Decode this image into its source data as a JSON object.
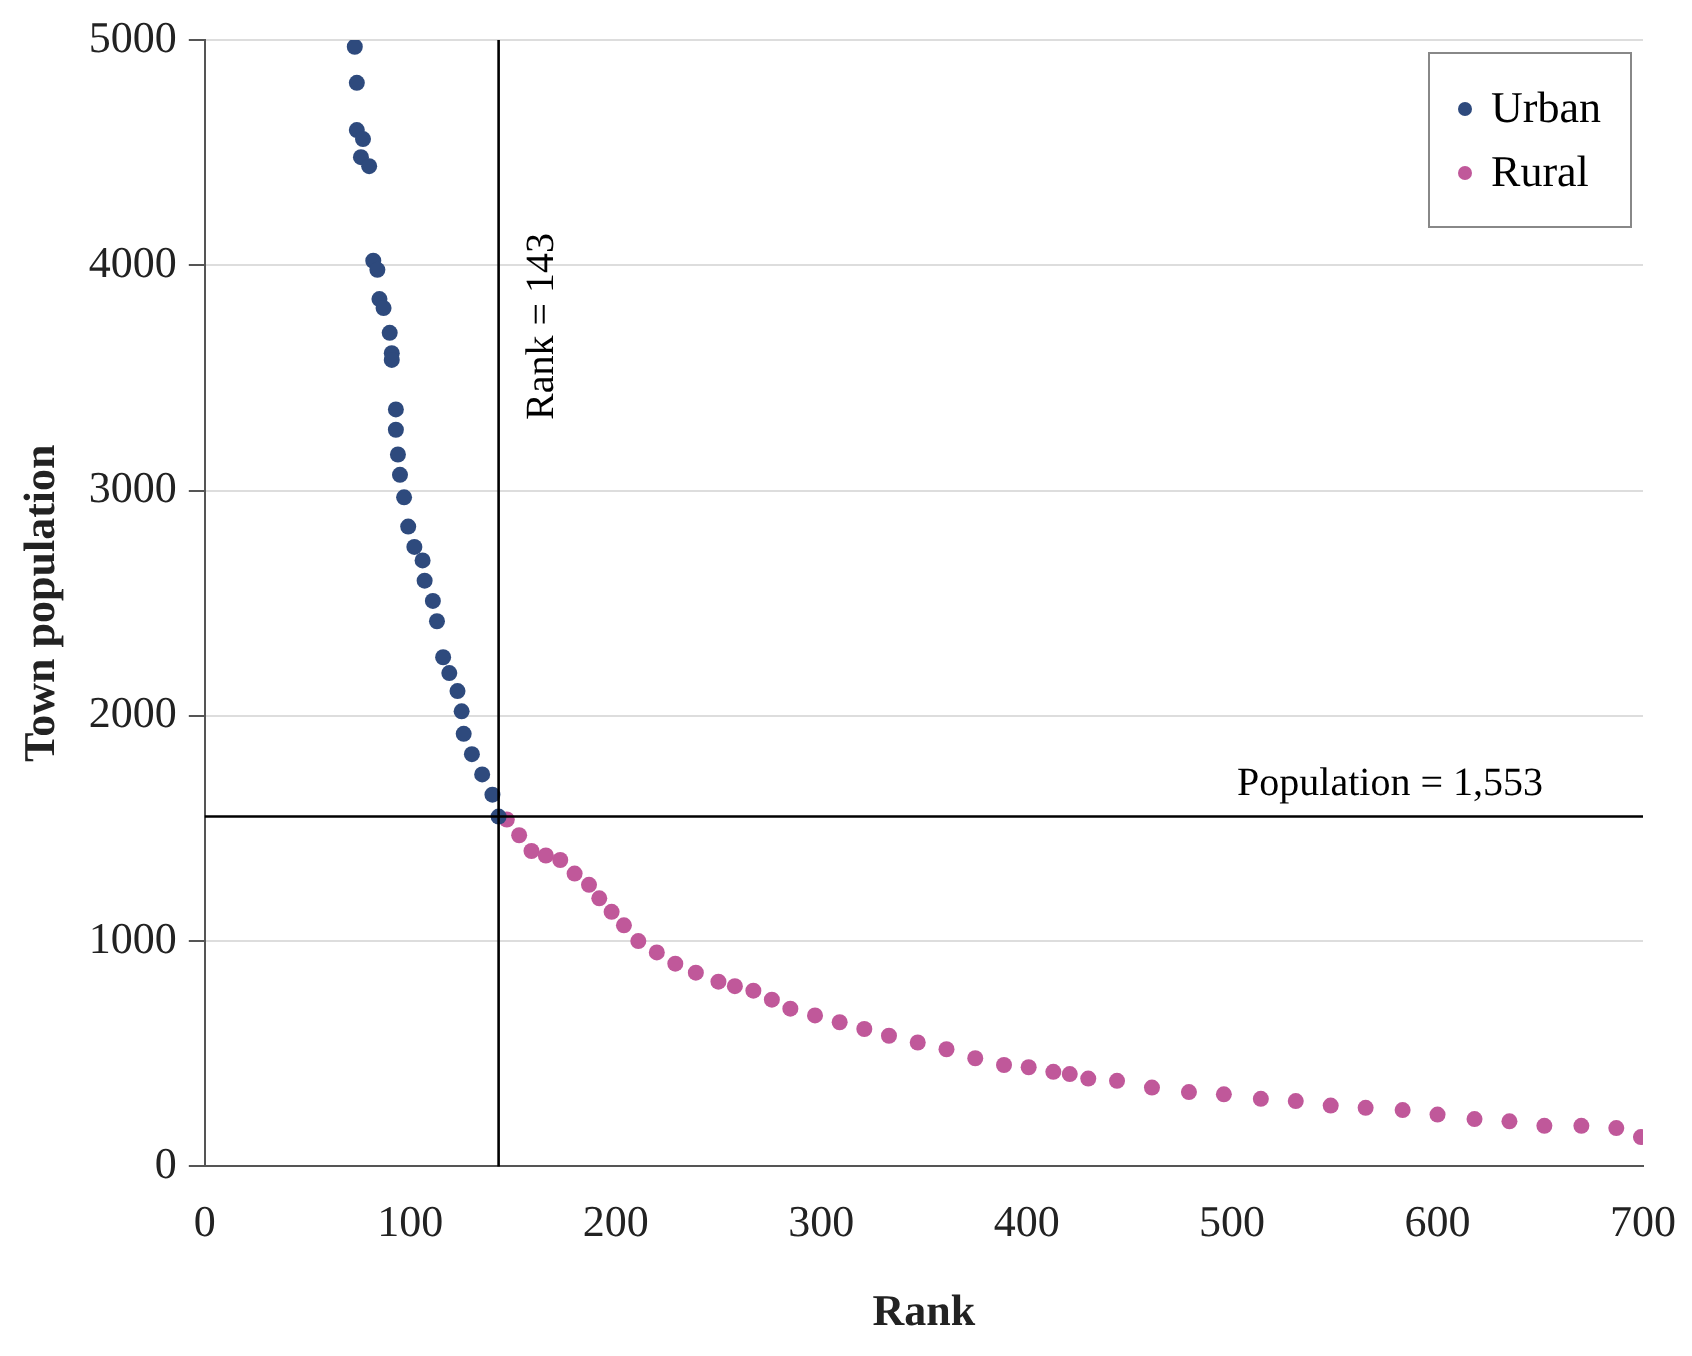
{
  "chart_data": {
    "type": "scatter",
    "xlabel": "Rank",
    "ylabel": "Town population",
    "xlim": [
      0,
      700
    ],
    "xticks": [
      0,
      100,
      200,
      300,
      400,
      500,
      600,
      700
    ],
    "ylim": [
      0,
      5000
    ],
    "yticks": [
      0,
      1000,
      2000,
      3000,
      4000,
      5000
    ],
    "grid": "y",
    "legend": "top right",
    "marker": "circle",
    "series": [
      {
        "name": "Urban",
        "color": "#2e4a7d",
        "x": [
          73,
          74,
          74,
          77,
          76,
          80,
          82,
          84,
          85,
          87,
          90,
          91,
          91,
          93,
          93,
          94,
          95,
          97,
          99,
          102,
          106,
          107,
          111,
          113,
          116,
          119,
          123,
          125,
          126,
          130,
          135,
          140,
          143
        ],
        "values": [
          4970,
          4810,
          4600,
          4560,
          4480,
          4440,
          4020,
          3980,
          3850,
          3810,
          3700,
          3610,
          3580,
          3360,
          3270,
          3160,
          3070,
          2970,
          2840,
          2750,
          2690,
          2600,
          2510,
          2420,
          2260,
          2190,
          2110,
          2020,
          1920,
          1830,
          1740,
          1650,
          1553
        ]
      },
      {
        "name": "Rural",
        "color": "#c0589a",
        "x": [
          147,
          153,
          159,
          166,
          173,
          180,
          187,
          192,
          198,
          204,
          211,
          220,
          229,
          239,
          250,
          258,
          267,
          276,
          285,
          297,
          309,
          321,
          333,
          347,
          361,
          375,
          389,
          401,
          413,
          421,
          430,
          444,
          461,
          479,
          496,
          514,
          531,
          548,
          565,
          583,
          600,
          618,
          635,
          652,
          670,
          687,
          699
        ],
        "values": [
          1540,
          1470,
          1400,
          1380,
          1360,
          1300,
          1250,
          1190,
          1130,
          1070,
          1000,
          950,
          900,
          860,
          820,
          800,
          780,
          740,
          700,
          670,
          640,
          610,
          580,
          550,
          520,
          480,
          450,
          440,
          420,
          410,
          390,
          380,
          350,
          330,
          320,
          300,
          290,
          270,
          260,
          250,
          230,
          210,
          200,
          180,
          180,
          170,
          130
        ]
      }
    ],
    "ref_lines": [
      {
        "axis": "x",
        "value": 143,
        "label": "Rank = 143",
        "color": "#000000"
      },
      {
        "axis": "y",
        "value": 1553,
        "label": "Population = 1,553",
        "color": "#000000"
      }
    ]
  }
}
